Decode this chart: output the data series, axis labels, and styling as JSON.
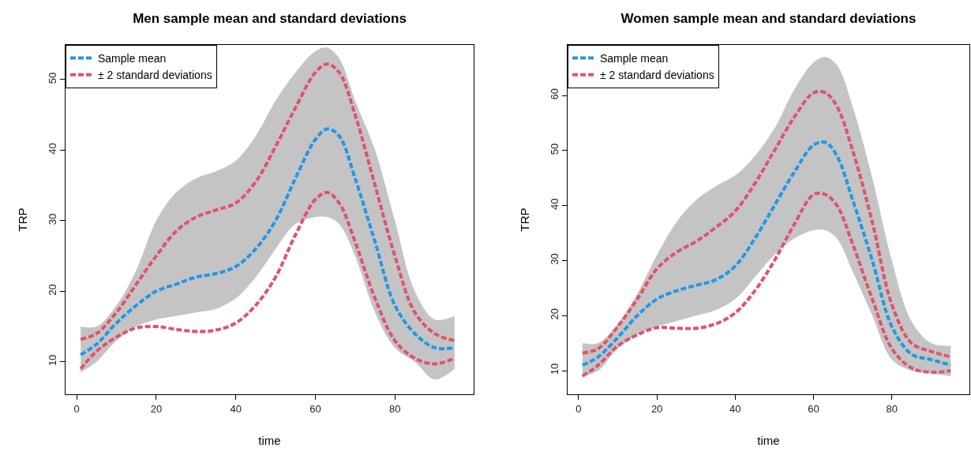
{
  "chart_data": [
    {
      "type": "line",
      "title": "Men sample mean and standard deviations",
      "xlabel": "time",
      "ylabel": "TRP",
      "x": [
        1,
        5,
        10,
        15,
        20,
        25,
        30,
        35,
        40,
        45,
        50,
        55,
        60,
        63,
        66,
        70,
        75,
        80,
        85,
        90,
        95
      ],
      "xlim": [
        -2.8,
        99.8
      ],
      "ylim": [
        5.4,
        54.9
      ],
      "xticks": [
        0,
        20,
        40,
        60,
        80
      ],
      "yticks": [
        10,
        20,
        30,
        40,
        50
      ],
      "grid": false,
      "legend": "top left",
      "marker": "none",
      "line_style": "dashed",
      "series": [
        {
          "name": "Sample mean",
          "color": "#2297e6",
          "values": [
            11,
            12.5,
            15.5,
            18,
            20,
            21,
            22,
            22.5,
            23.5,
            26,
            30,
            36,
            41.5,
            43,
            42,
            36,
            27,
            18,
            14,
            12,
            12
          ],
          "lower": [
            8.5,
            10,
            13,
            15,
            16,
            16.5,
            17,
            17.5,
            19,
            22,
            26,
            29.5,
            30.5,
            30.5,
            29.5,
            25,
            17,
            12,
            10,
            7.5,
            9
          ],
          "upper": [
            15,
            15,
            18,
            23,
            30,
            34,
            36,
            37,
            38.5,
            42,
            47,
            51,
            54,
            54.5,
            53,
            47,
            40,
            30,
            20,
            16,
            16.5
          ]
        },
        {
          "name": "± 2 standard deviations",
          "color": "#df536b",
          "values": [
            13.2,
            14,
            17,
            21,
            25,
            28.5,
            30.5,
            31.5,
            32.5,
            35.5,
            40.5,
            46,
            51,
            52.2,
            51,
            45,
            35,
            25,
            17,
            14,
            13
          ]
        },
        {
          "color": "#df536b",
          "values": [
            9,
            11.5,
            13.5,
            14.8,
            15,
            14.6,
            14.3,
            14.5,
            15.5,
            18,
            22,
            28,
            33,
            34,
            32.5,
            27,
            19,
            13,
            10.5,
            9.7,
            10.5
          ]
        }
      ]
    },
    {
      "type": "line",
      "title": "Women sample mean and standard deviations",
      "xlabel": "time",
      "ylabel": "TRP",
      "x": [
        1,
        5,
        10,
        15,
        20,
        25,
        30,
        35,
        40,
        45,
        50,
        55,
        60,
        63,
        66,
        70,
        75,
        80,
        85,
        90,
        95
      ],
      "xlim": [
        -2.8,
        99.8
      ],
      "ylim": [
        5.7,
        69.2
      ],
      "xticks": [
        0,
        20,
        40,
        60,
        80
      ],
      "yticks": [
        10,
        20,
        30,
        40,
        50,
        60
      ],
      "grid": false,
      "legend": "top left",
      "marker": "none",
      "line_style": "dashed",
      "series": [
        {
          "name": "Sample mean",
          "color": "#2297e6",
          "values": [
            11,
            12.5,
            16,
            20,
            23,
            24.5,
            25.5,
            26.5,
            29,
            34,
            40,
            46,
            51,
            51.5,
            49,
            41,
            30,
            18,
            13,
            12,
            11
          ],
          "lower": [
            9,
            10,
            14,
            16.5,
            18,
            19,
            20,
            21,
            23,
            27,
            31,
            34,
            35.5,
            35.5,
            34,
            28,
            20,
            12,
            10,
            9.5,
            9
          ],
          "upper": [
            15,
            15,
            18.5,
            24,
            31,
            37,
            41,
            43.5,
            45.5,
            49,
            54,
            61,
            66,
            67,
            65.5,
            58,
            45,
            30,
            19,
            15,
            14.5
          ]
        },
        {
          "name": "± 2 standard deviations",
          "color": "#df536b",
          "values": [
            13.2,
            14,
            18,
            23,
            28.5,
            31.5,
            33.5,
            36,
            39,
            44,
            50,
            56,
            60.5,
            60.5,
            58,
            50,
            37,
            22,
            15,
            13.5,
            12.5
          ]
        },
        {
          "color": "#df536b",
          "values": [
            9,
            11,
            14.5,
            16.5,
            17.8,
            17.7,
            17.7,
            18.5,
            20.5,
            24.5,
            30,
            36.5,
            42,
            42,
            40,
            33,
            23,
            14,
            10.5,
            9.7,
            10
          ]
        }
      ]
    }
  ]
}
